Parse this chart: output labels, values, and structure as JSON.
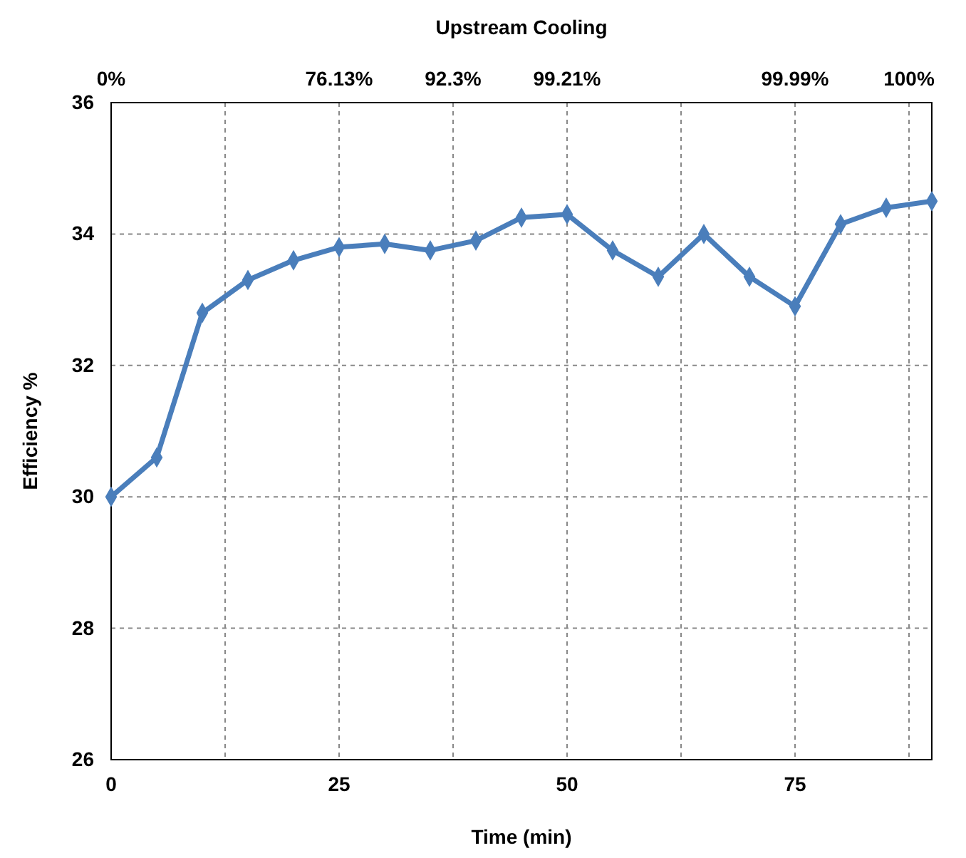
{
  "chart_data": {
    "type": "line",
    "x2label": "Upstream Cooling",
    "xlabel": "Time (min)",
    "ylabel": "Efficiency %",
    "x": [
      0,
      5,
      10,
      15,
      20,
      25,
      30,
      35,
      40,
      45,
      50,
      55,
      60,
      65,
      70,
      75,
      80,
      85,
      90
    ],
    "series": [
      {
        "color": "#4a7ebb",
        "values": [
          30.0,
          30.6,
          32.8,
          33.3,
          33.6,
          33.8,
          33.85,
          33.75,
          33.9,
          34.25,
          34.3,
          33.75,
          33.35,
          34.0,
          33.35,
          32.9,
          34.15,
          34.4,
          34.5
        ]
      }
    ],
    "xlim": [
      0,
      90
    ],
    "xticks": [
      0,
      {
        "value": 12.5,
        "label": null
      },
      25,
      {
        "value": 37.5,
        "label": null
      },
      50,
      {
        "value": 62.5,
        "label": null
      },
      75,
      {
        "value": 87.5,
        "label": null
      }
    ],
    "annotations": [
      "0%",
      "76.13%",
      "92.3%",
      "99.21%",
      "99.99%",
      "100%"
    ],
    "ylim": [
      26,
      36
    ],
    "yticks": [
      26,
      28,
      30,
      32,
      34,
      36
    ],
    "grid": true,
    "marker": "diamond",
    "line_style": "solid"
  }
}
